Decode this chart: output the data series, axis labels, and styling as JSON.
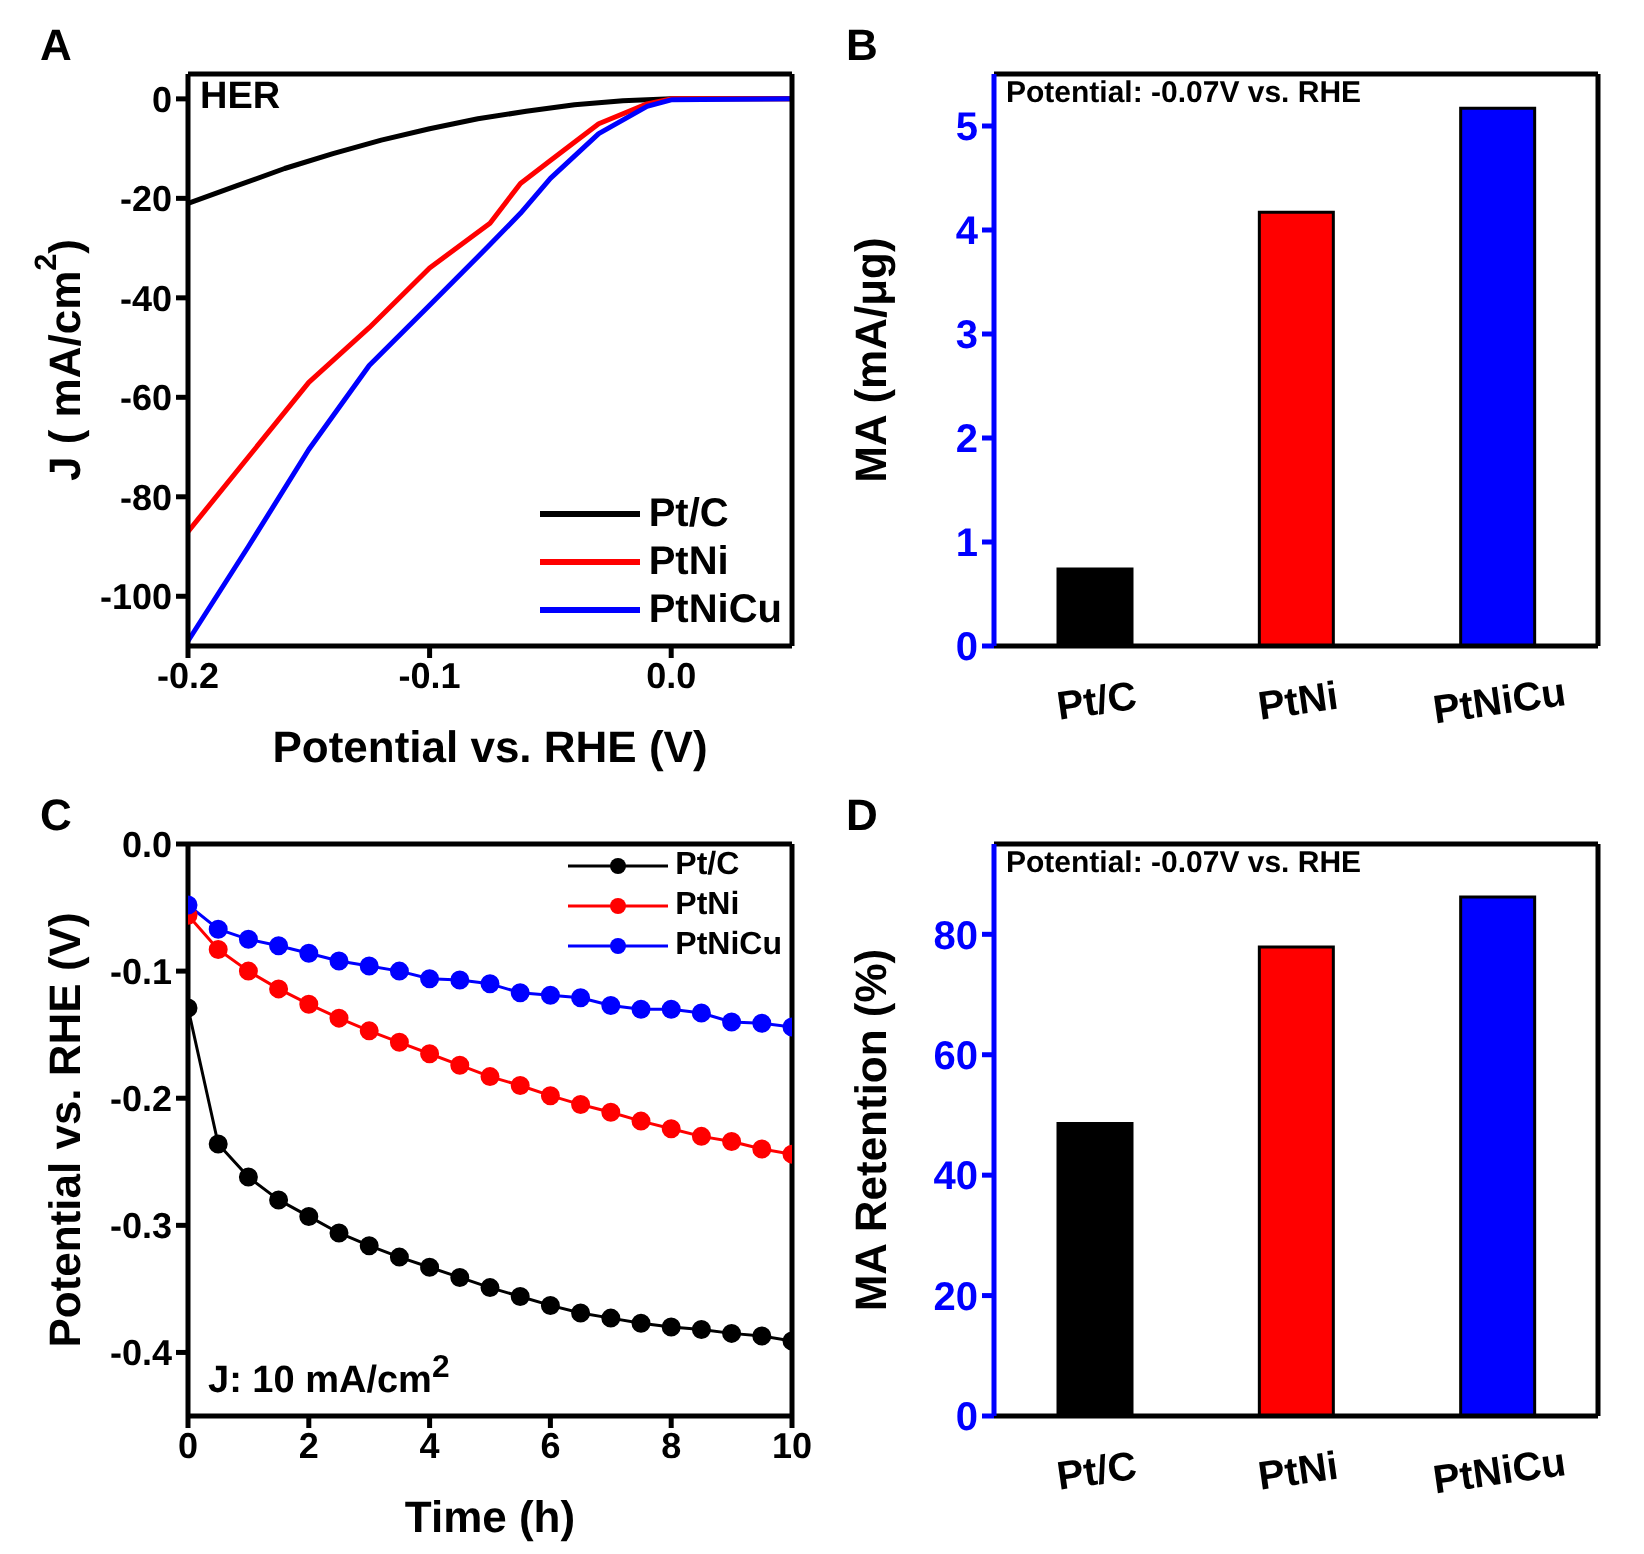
{
  "chart_data": [
    {
      "type": "line",
      "title": "A",
      "xlabel": "Potential vs. RHE (V)",
      "ylabel": "J ( mA/cm$^{2}$)",
      "annotations": [
        "HER"
      ],
      "xlim": [
        -0.2,
        0.05
      ],
      "ylim": [
        -110,
        5
      ],
      "xticks": [
        -0.2,
        -0.1,
        {
          "value": 0,
          "label": "0.0"
        }
      ],
      "yticks": [
        0,
        -20,
        -40,
        -60,
        -80,
        -100
      ],
      "legend": "bottom right",
      "series": [
        {
          "name": "Pt/C",
          "color": "#000000",
          "x": [
            -0.2,
            -0.18,
            -0.16,
            -0.14,
            -0.12,
            -0.1,
            -0.08,
            -0.06,
            -0.04,
            -0.02,
            0,
            0.05
          ],
          "values": [
            -21,
            -17.5,
            -14,
            -11,
            -8.3,
            -6,
            -4,
            -2.5,
            -1.2,
            -0.4,
            0,
            0
          ]
        },
        {
          "name": "PtNi",
          "color": "#ff0000",
          "x": [
            -0.2,
            -0.175,
            -0.15,
            -0.125,
            -0.1,
            -0.075,
            -0.0624,
            -0.05,
            -0.03,
            -0.01,
            0,
            0.05
          ],
          "values": [
            -87,
            -72,
            -57,
            -46,
            -34,
            -25,
            -17,
            -12.4,
            -5,
            -1,
            0,
            0
          ]
        },
        {
          "name": "PtNiCu",
          "color": "#0000ff",
          "x": [
            -0.2,
            -0.175,
            -0.15,
            -0.125,
            -0.1,
            -0.075,
            -0.0624,
            -0.05,
            -0.03,
            -0.01,
            0,
            0.05
          ],
          "values": [
            -109,
            -90,
            -70.5,
            -53.6,
            -41.5,
            -29.3,
            -23,
            -16,
            -7,
            -1.5,
            -0.2,
            0
          ]
        }
      ]
    },
    {
      "type": "bar",
      "title": "B",
      "ylabel": "MA (mA/μg)",
      "annotations": [
        "Potential: -0.07V vs. RHE"
      ],
      "categories": [
        "Pt/C",
        "PtNi",
        "PtNiCu"
      ],
      "values": [
        0.74,
        4.17,
        5.17
      ],
      "colors": [
        "#000000",
        "#ff0000",
        "#0000ff"
      ],
      "ylim": [
        0,
        5.5
      ],
      "yticks": [
        0,
        1,
        2,
        3,
        4,
        5
      ]
    },
    {
      "type": "line",
      "title": "C",
      "xlabel": "Time (h)",
      "ylabel": "Potential vs. RHE (V)",
      "annotations": [
        "J: 10 mA/cm$^{2}$"
      ],
      "xlim": [
        0,
        10
      ],
      "ylim": [
        -0.45,
        0
      ],
      "xticks": [
        0,
        2,
        4,
        6,
        8,
        10
      ],
      "yticks": [
        {
          "value": 0,
          "label": "0.0"
        },
        -0.1,
        -0.2,
        -0.3,
        -0.4
      ],
      "legend": "top right",
      "marker": "circle",
      "x": [
        0,
        0.5,
        1,
        1.5,
        2,
        2.5,
        3,
        3.5,
        4,
        4.5,
        5,
        5.5,
        6,
        6.5,
        7,
        7.5,
        8,
        8.5,
        9,
        9.5,
        10
      ],
      "series": [
        {
          "name": "Pt/C",
          "color": "#000000",
          "values": [
            -0.129,
            -0.236,
            -0.262,
            -0.28,
            -0.293,
            -0.306,
            -0.316,
            -0.325,
            -0.333,
            -0.341,
            -0.349,
            -0.356,
            -0.363,
            -0.369,
            -0.373,
            -0.377,
            -0.38,
            -0.382,
            -0.385,
            -0.387,
            -0.391
          ]
        },
        {
          "name": "PtNi",
          "color": "#ff0000",
          "values": [
            -0.056,
            -0.083,
            -0.1,
            -0.114,
            -0.126,
            -0.137,
            -0.147,
            -0.156,
            -0.165,
            -0.174,
            -0.183,
            -0.19,
            -0.198,
            -0.205,
            -0.211,
            -0.218,
            -0.224,
            -0.23,
            -0.234,
            -0.24,
            -0.244
          ]
        },
        {
          "name": "PtNiCu",
          "color": "#0000ff",
          "values": [
            -0.048,
            -0.067,
            -0.075,
            -0.08,
            -0.086,
            -0.092,
            -0.096,
            -0.1,
            -0.106,
            -0.107,
            -0.11,
            -0.117,
            -0.119,
            -0.121,
            -0.127,
            -0.13,
            -0.13,
            -0.133,
            -0.14,
            -0.141,
            -0.144
          ]
        }
      ]
    },
    {
      "type": "bar",
      "title": "D",
      "ylabel": "MA Retention (%)",
      "annotations": [
        "Potential: -0.07V vs. RHE"
      ],
      "categories": [
        "Pt/C",
        "PtNi",
        "PtNiCu"
      ],
      "values": [
        48.6,
        77.9,
        86.2
      ],
      "colors": [
        "#000000",
        "#ff0000",
        "#0000ff"
      ],
      "ylim": [
        0,
        95
      ],
      "yticks": [
        0,
        20,
        40,
        60,
        80
      ]
    }
  ]
}
